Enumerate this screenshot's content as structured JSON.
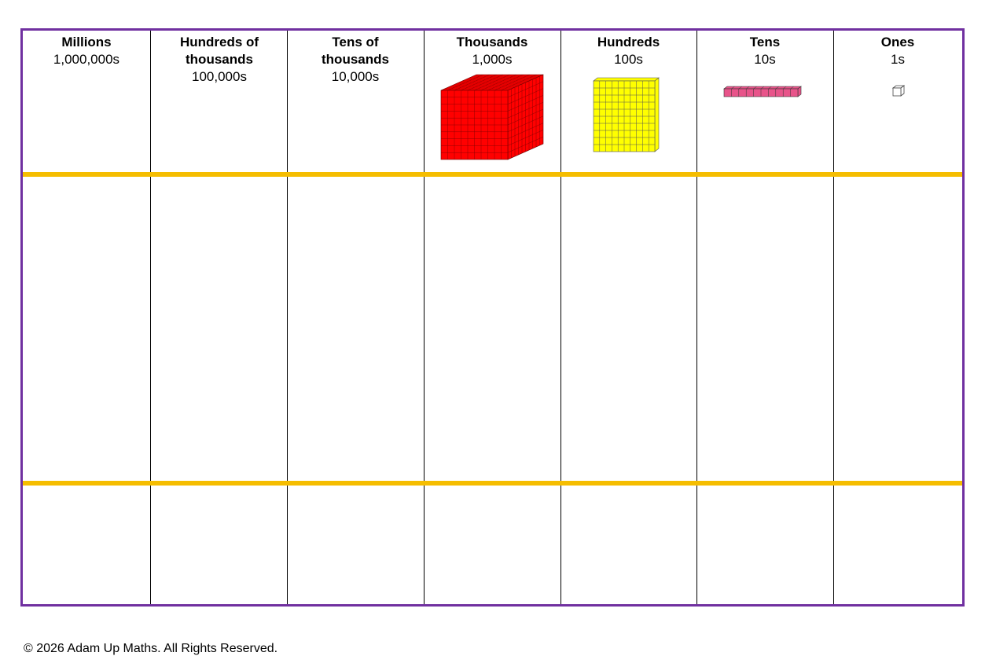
{
  "chart": {
    "columns": [
      {
        "name": "Millions",
        "value": "1,000,000s",
        "block": "none"
      },
      {
        "name": "Hundreds of thousands",
        "value": "100,000s",
        "block": "none"
      },
      {
        "name": "Tens of thousands",
        "value": "10,000s",
        "block": "none"
      },
      {
        "name": "Thousands",
        "value": "1,000s",
        "block": "thousand-cube"
      },
      {
        "name": "Hundreds",
        "value": "100s",
        "block": "hundred-flat"
      },
      {
        "name": "Tens",
        "value": "10s",
        "block": "ten-rod"
      },
      {
        "name": "Ones",
        "value": "1s",
        "block": "one-cube"
      }
    ],
    "colors": {
      "border": "#7030a0",
      "row_divider": "#f5bd00",
      "thousand_block": "#ff0000",
      "hundred_block": "#ffff00",
      "ten_block": "#e8548a",
      "one_block": "#ffffff"
    }
  },
  "footer": {
    "copyright": "© 2026 Adam Up Maths. All Rights Reserved."
  }
}
